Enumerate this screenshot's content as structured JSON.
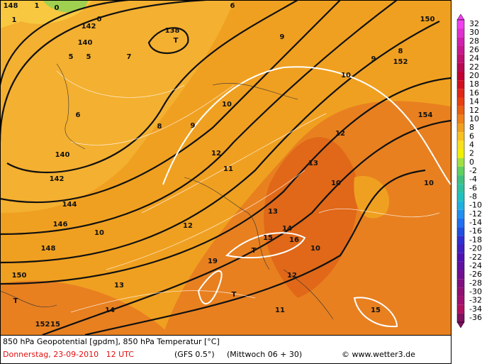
{
  "header": {
    "line1": "850 hPa Geopotential [gpdm], 850 hPa Temperatur [°C]",
    "date": "Donnerstag, 23-09-2010   12 UTC",
    "model": "(GFS 0.5°)",
    "run": "(Mittwoch 06 + 30)",
    "credit": "© www.wetter3.de"
  },
  "colorbar": {
    "labels": [
      32,
      30,
      28,
      26,
      24,
      22,
      20,
      18,
      16,
      14,
      12,
      10,
      8,
      6,
      4,
      2,
      0,
      -2,
      -4,
      -6,
      -8,
      -10,
      -12,
      -14,
      -16,
      -18,
      -20,
      -22,
      -24,
      -26,
      -28,
      -30,
      -32,
      -34,
      -36
    ],
    "colors": [
      "#f040f0",
      "#e030d0",
      "#d020b0",
      "#c81890",
      "#c01070",
      "#b80850",
      "#c00030",
      "#d01020",
      "#e02818",
      "#e84010",
      "#e86010",
      "#f08018",
      "#f0a020",
      "#f8c020",
      "#f8e020",
      "#f0f000",
      "#a0e040",
      "#60d060",
      "#40c080",
      "#30c0a0",
      "#20c0c0",
      "#20b0e0",
      "#2090f0",
      "#2070f0",
      "#2050e0",
      "#3030d0",
      "#4020c0",
      "#5010b0",
      "#6010a0",
      "#701090",
      "#801080",
      "#901070",
      "#a01070",
      "#b01060",
      "#801060"
    ]
  },
  "map_labels": [
    "142",
    "140",
    "138",
    "148",
    "10",
    "10",
    "10",
    "10",
    "10",
    "10",
    "15",
    "19",
    "15",
    "15",
    "144",
    "146",
    "148",
    "150",
    "152",
    "154",
    "152",
    "150",
    "0",
    "0",
    "5",
    "5",
    "T",
    "T",
    "T",
    "T",
    "12",
    "12",
    "13",
    "13",
    "12",
    "11",
    "14",
    "16",
    "12",
    "13",
    "14",
    "11",
    "8",
    "9",
    "7",
    "6",
    "1",
    "1",
    "9",
    "6",
    "8",
    "9",
    "140",
    "142"
  ]
}
